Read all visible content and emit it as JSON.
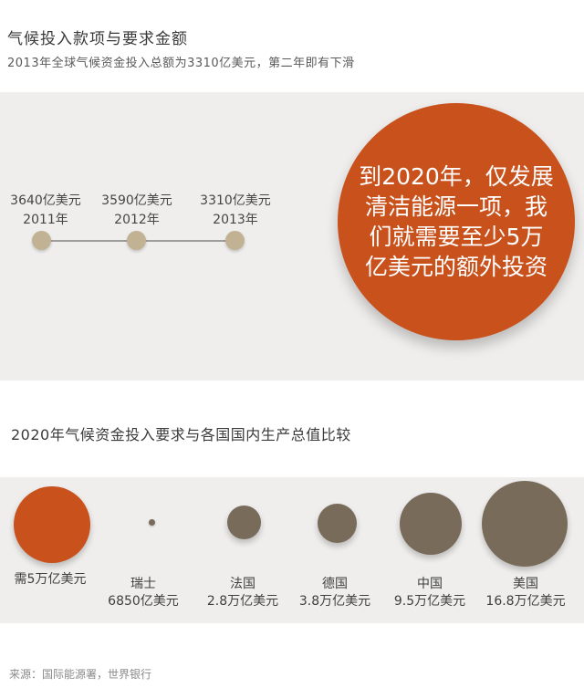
{
  "page": {
    "title": "气候投入款项与要求金额",
    "subtitle": "2013年全球气候资金投入总额为3310亿美元，第二年即有下滑",
    "source": "来源：国际能源署，世界银行"
  },
  "section2": {
    "title": "2020年气候资金投入要求与各国国内生产总值比较"
  },
  "callout": {
    "full_text": "到2020年，仅发展清洁能源一项，我们就需要至少5万亿美元的额外投资",
    "lines": [
      "到2020年，仅发展",
      "清洁能源一项，我",
      "们就需要至少5万",
      "亿美元的额外投资"
    ]
  },
  "colors": {
    "accent_orange": "#c8511c",
    "timeline_dot_tan": "#c2b294",
    "gdp_bubble_brown": "#786b5a",
    "band_background": "#efeeed"
  },
  "chart_data": [
    {
      "type": "line",
      "title": "气候投入款项与要求金额",
      "subtitle": "2013年全球气候资金投入总额为3310亿美元，第二年即有下滑",
      "x": [
        "2011年",
        "2012年",
        "2013年"
      ],
      "values": [
        3640,
        3590,
        3310
      ],
      "unit": "亿美元",
      "points": [
        {
          "label": "3640亿美元",
          "year": "2011年",
          "value": 3640
        },
        {
          "label": "3590亿美元",
          "year": "2012年",
          "value": 3590
        },
        {
          "label": "3310亿美元",
          "year": "2013年",
          "value": 3310
        }
      ],
      "annotation": "到2020年，仅发展清洁能源一项，我们就需要至少5万亿美元的额外投资",
      "legend_position": "none",
      "grid": false
    },
    {
      "type": "bubble",
      "title": "2020年气候资金投入要求与各国国内生产总值比较",
      "unit": "万亿美元",
      "bubbles": [
        {
          "label": "需5万亿美元",
          "sublabel": "",
          "value_trillion_usd": 5,
          "color": "#c8511c"
        },
        {
          "label": "瑞士",
          "sublabel": "6850亿美元",
          "value_trillion_usd": 0.685,
          "color": "#786b5a"
        },
        {
          "label": "法国",
          "sublabel": "2.8万亿美元",
          "value_trillion_usd": 2.8,
          "color": "#786b5a"
        },
        {
          "label": "德国",
          "sublabel": "3.8万亿美元",
          "value_trillion_usd": 3.8,
          "color": "#786b5a"
        },
        {
          "label": "中国",
          "sublabel": "9.5万亿美元",
          "value_trillion_usd": 9.5,
          "color": "#786b5a"
        },
        {
          "label": "美国",
          "sublabel": "16.8万亿美元",
          "value_trillion_usd": 16.8,
          "color": "#786b5a"
        }
      ],
      "legend_position": "none",
      "grid": false
    }
  ]
}
